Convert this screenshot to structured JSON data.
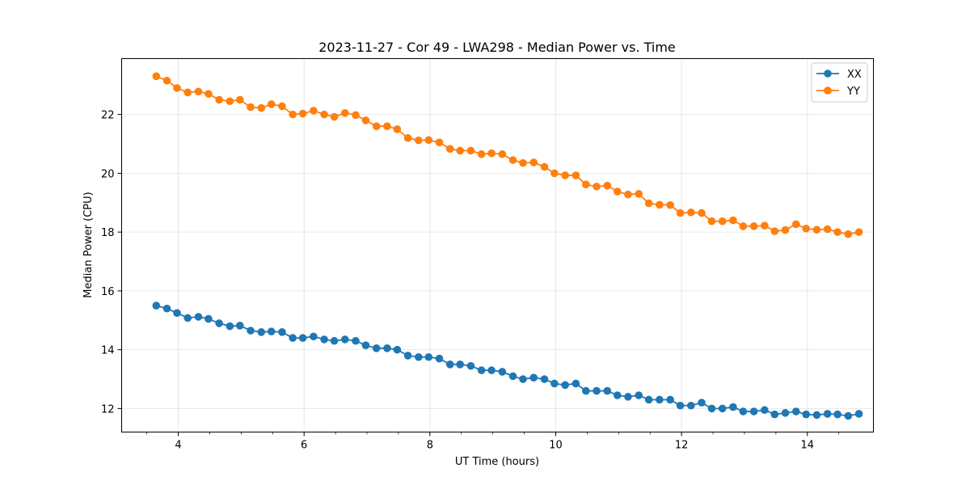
{
  "chart_data": {
    "type": "line",
    "title": "2023-11-27 - Cor 49 - LWA298 - Median Power vs. Time",
    "xlabel": "UT Time (hours)",
    "ylabel": "Median Power (CPU)",
    "xlim": [
      3.1,
      15.05
    ],
    "ylim": [
      11.2,
      23.9
    ],
    "xticks": [
      4,
      6,
      8,
      10,
      12,
      14
    ],
    "yticks": [
      12,
      14,
      16,
      18,
      20,
      22
    ],
    "xtick_labels": [
      "4",
      "6",
      "8",
      "10",
      "12",
      "14"
    ],
    "ytick_labels": [
      "12",
      "14",
      "16",
      "18",
      "20",
      "22"
    ],
    "grid": true,
    "legend_position": "top-right",
    "x": [
      3.65,
      3.82,
      3.98,
      4.15,
      4.32,
      4.48,
      4.65,
      4.82,
      4.98,
      5.15,
      5.32,
      5.48,
      5.65,
      5.82,
      5.98,
      6.15,
      6.32,
      6.48,
      6.65,
      6.82,
      6.98,
      7.15,
      7.32,
      7.48,
      7.65,
      7.82,
      7.98,
      8.15,
      8.32,
      8.48,
      8.65,
      8.82,
      8.98,
      9.15,
      9.32,
      9.48,
      9.65,
      9.82,
      9.98,
      10.15,
      10.32,
      10.48,
      10.65,
      10.82,
      10.98,
      11.15,
      11.32,
      11.48,
      11.65,
      11.82,
      11.98,
      12.15,
      12.32,
      12.48,
      12.65,
      12.82,
      12.98,
      13.15,
      13.32,
      13.48,
      13.65,
      13.82,
      13.98,
      14.15,
      14.32,
      14.48,
      14.65,
      14.82
    ],
    "series": [
      {
        "name": "XX",
        "color": "#1f77b4",
        "values": [
          15.5,
          15.4,
          15.25,
          15.08,
          15.12,
          15.05,
          14.9,
          14.8,
          14.82,
          14.65,
          14.6,
          14.62,
          14.6,
          14.4,
          14.4,
          14.45,
          14.35,
          14.3,
          14.35,
          14.3,
          14.15,
          14.05,
          14.05,
          14.0,
          13.8,
          13.75,
          13.75,
          13.7,
          13.5,
          13.5,
          13.45,
          13.3,
          13.3,
          13.25,
          13.1,
          13.0,
          13.05,
          13.0,
          12.85,
          12.8,
          12.85,
          12.6,
          12.6,
          12.6,
          12.45,
          12.4,
          12.45,
          12.3,
          12.3,
          12.3,
          12.1,
          12.1,
          12.2,
          12.0,
          12.0,
          12.05,
          11.9,
          11.9,
          11.95,
          11.8,
          11.85,
          11.9,
          11.8,
          11.78,
          11.82,
          11.8,
          11.75,
          11.82
        ]
      },
      {
        "name": "YY",
        "color": "#ff7f0e",
        "values": [
          23.3,
          23.15,
          22.9,
          22.75,
          22.78,
          22.7,
          22.5,
          22.45,
          22.5,
          22.25,
          22.22,
          22.35,
          22.28,
          22.0,
          22.03,
          22.13,
          22.0,
          21.92,
          22.05,
          21.98,
          21.8,
          21.6,
          21.6,
          21.5,
          21.2,
          21.12,
          21.13,
          21.05,
          20.83,
          20.77,
          20.77,
          20.65,
          20.68,
          20.65,
          20.45,
          20.35,
          20.37,
          20.22,
          20.0,
          19.93,
          19.93,
          19.62,
          19.55,
          19.58,
          19.38,
          19.28,
          19.3,
          18.98,
          18.93,
          18.92,
          18.65,
          18.67,
          18.65,
          18.37,
          18.37,
          18.4,
          18.2,
          18.2,
          18.22,
          18.03,
          18.07,
          18.27,
          18.12,
          18.08,
          18.1,
          18.0,
          17.93,
          18.0
        ]
      }
    ]
  }
}
